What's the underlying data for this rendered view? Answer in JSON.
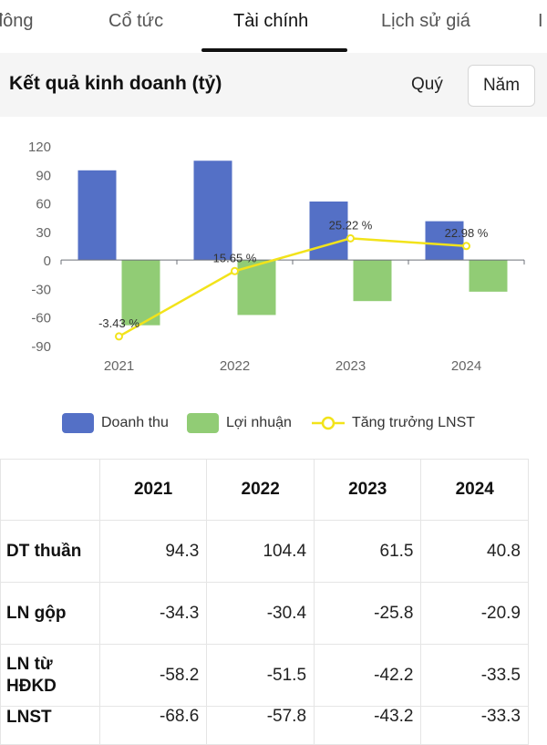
{
  "tabs": [
    {
      "label": "đông",
      "active": false
    },
    {
      "label": "Cổ tức",
      "active": false
    },
    {
      "label": "Tài chính",
      "active": true
    },
    {
      "label": "Lịch sử giá",
      "active": false
    },
    {
      "label": "I",
      "active": false
    }
  ],
  "header": {
    "title": "Kết quả kinh doanh (tỷ)",
    "period_quarter": "Quý",
    "period_year": "Năm",
    "selected_period": "Năm"
  },
  "chart_data": {
    "type": "bar",
    "categories": [
      "2021",
      "2022",
      "2023",
      "2024"
    ],
    "series": [
      {
        "name": "Doanh thu",
        "type": "bar",
        "color": "#5470c6",
        "values": [
          94.3,
          104.4,
          61.5,
          40.8
        ]
      },
      {
        "name": "Lợi nhuận",
        "type": "bar",
        "color": "#91cc75",
        "values": [
          -68.6,
          -57.8,
          -43.2,
          -33.3
        ]
      },
      {
        "name": "Tăng trưởng LNST",
        "type": "line",
        "color": "#f2e31a",
        "values": [
          -3.43,
          15.65,
          25.22,
          22.98
        ],
        "labels": [
          "-3.43 %",
          "15.65 %",
          "25.22 %",
          "22.98 %"
        ]
      }
    ],
    "yticks": [
      120,
      90,
      60,
      30,
      0,
      -30,
      -60,
      -90
    ],
    "ylim": [
      -90,
      120
    ],
    "grid": false,
    "legend": "bottom"
  },
  "table": {
    "headers": [
      "",
      "2021",
      "2022",
      "2023",
      "2024"
    ],
    "rows": [
      {
        "label": "DT thuần",
        "values": [
          "94.3",
          "104.4",
          "61.5",
          "40.8"
        ]
      },
      {
        "label": "LN gộp",
        "values": [
          "-34.3",
          "-30.4",
          "-25.8",
          "-20.9"
        ]
      },
      {
        "label": "LN từ HĐKD",
        "values": [
          "-58.2",
          "-51.5",
          "-42.2",
          "-33.5"
        ]
      },
      {
        "label": "LNST",
        "values": [
          "-68.6",
          "-57.8",
          "-43.2",
          "-33.3"
        ]
      }
    ]
  }
}
